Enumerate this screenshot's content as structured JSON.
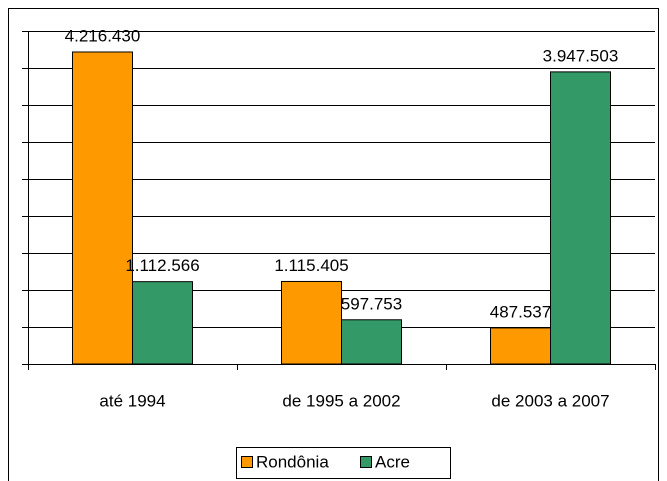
{
  "chart_data": {
    "type": "bar",
    "categories": [
      "até 1994",
      "de 1995 a 2002",
      "de 2003 a 2007"
    ],
    "series": [
      {
        "name": "Rondônia",
        "color": "#ff9900",
        "values": [
          4216430,
          1115405,
          487537
        ],
        "value_labels": [
          "4.216.430",
          "1.115.405",
          "487.537"
        ]
      },
      {
        "name": "Acre",
        "color": "#339966",
        "values": [
          1112566,
          597753,
          3947503
        ],
        "value_labels": [
          "1.112.566",
          "597.753",
          "3.947.503"
        ]
      }
    ],
    "ylim": [
      0,
      4500000
    ],
    "yticks": [
      0,
      500000,
      1000000,
      1500000,
      2000000,
      2500000,
      3000000,
      3500000,
      4000000,
      4500000
    ],
    "grid": true
  }
}
